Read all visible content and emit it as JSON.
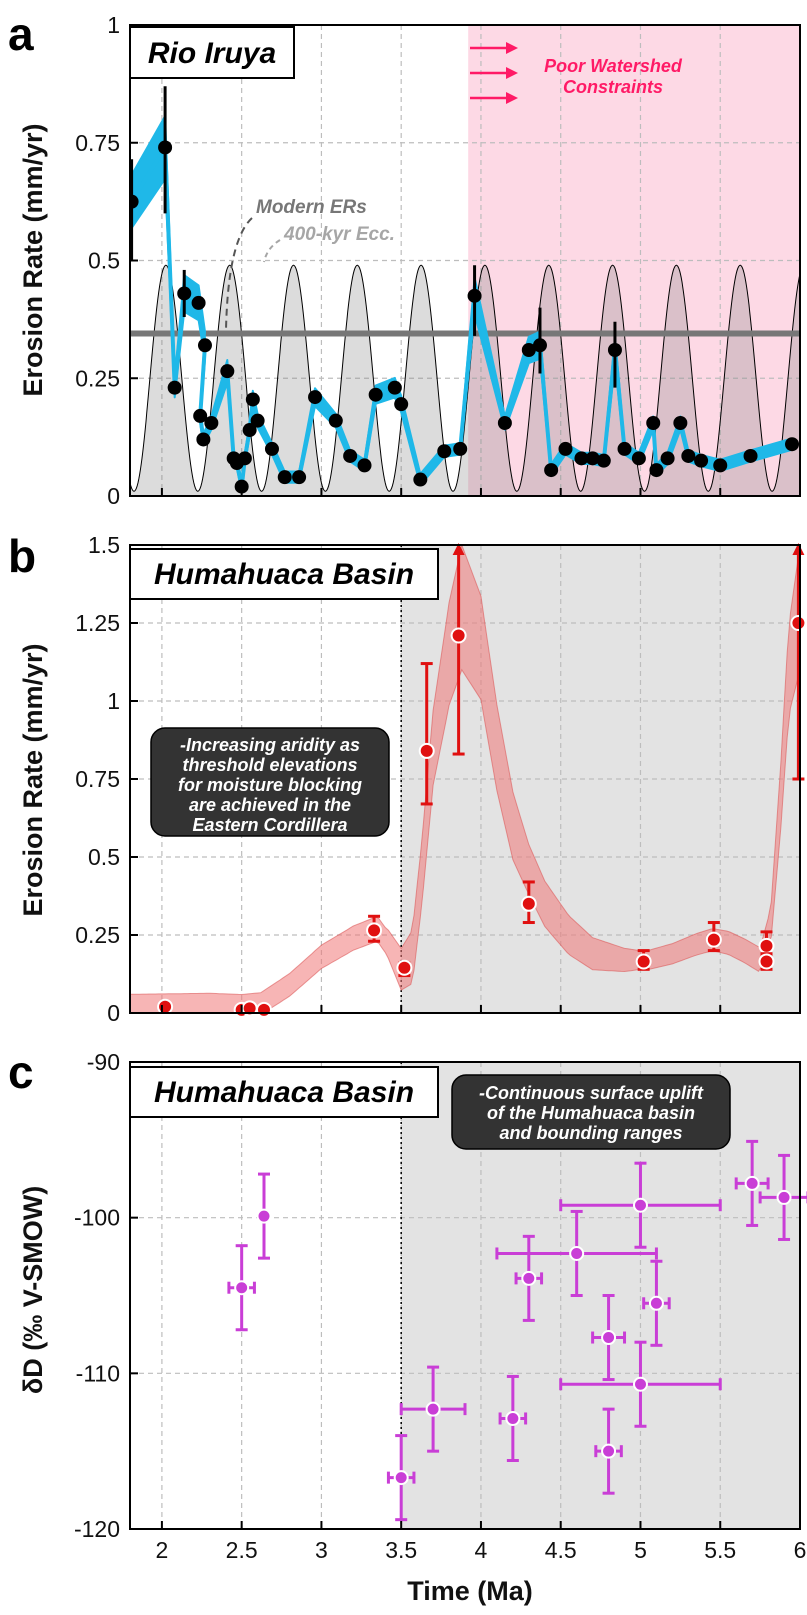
{
  "figure": {
    "x_label": "Time (Ma)",
    "x_ticks": [
      "2",
      "2.5",
      "3",
      "3.5",
      "4",
      "4.5",
      "5",
      "5.5",
      "6"
    ]
  },
  "chart_data": [
    {
      "panel": "a",
      "type": "line",
      "title": "Rio Iruya",
      "ylabel": "Erosion Rate (mm/yr)",
      "xlim": [
        1.8,
        6.0
      ],
      "ylim": [
        0,
        1
      ],
      "y_ticks": [
        "0",
        "0.25",
        "0.5",
        "0.75",
        "1"
      ],
      "grid": true,
      "shaded_region": {
        "x_start": 3.92,
        "x_end": 6.0,
        "color": "#fdd9e5",
        "label_lines": [
          "Poor Watershed",
          "Constraints"
        ],
        "label_color": "#ff1a66"
      },
      "reference_line": {
        "name": "Modern ERs",
        "y": 0.345,
        "color": "#777777"
      },
      "eccentricity": {
        "name": "400-kyr Ecc.",
        "period": 0.4,
        "first_peak": 2.025,
        "min": 0.01,
        "max": 0.49
      },
      "series": [
        {
          "values": [
            [
              1.81,
              0.625
            ],
            [
              2.02,
              0.74
            ],
            [
              2.08,
              0.23
            ],
            [
              2.14,
              0.43
            ],
            [
              2.23,
              0.41
            ],
            [
              2.27,
              0.32
            ],
            [
              2.24,
              0.17
            ],
            [
              2.26,
              0.12
            ],
            [
              2.31,
              0.155
            ],
            [
              2.41,
              0.265
            ],
            [
              2.45,
              0.08
            ],
            [
              2.47,
              0.07
            ],
            [
              2.5,
              0.02
            ],
            [
              2.52,
              0.08
            ],
            [
              2.55,
              0.14
            ],
            [
              2.57,
              0.205
            ],
            [
              2.6,
              0.16
            ],
            [
              2.69,
              0.1
            ],
            [
              2.77,
              0.04
            ],
            [
              2.86,
              0.04
            ],
            [
              2.96,
              0.21
            ],
            [
              3.09,
              0.16
            ],
            [
              3.18,
              0.085
            ],
            [
              3.27,
              0.065
            ],
            [
              3.34,
              0.215
            ],
            [
              3.46,
              0.23
            ],
            [
              3.5,
              0.195
            ],
            [
              3.62,
              0.035
            ],
            [
              3.77,
              0.095
            ],
            [
              3.87,
              0.1
            ],
            [
              3.96,
              0.425
            ],
            [
              4.15,
              0.155
            ],
            [
              4.3,
              0.31
            ],
            [
              4.37,
              0.32
            ],
            [
              4.44,
              0.055
            ],
            [
              4.53,
              0.1
            ],
            [
              4.63,
              0.08
            ],
            [
              4.7,
              0.08
            ],
            [
              4.77,
              0.075
            ],
            [
              4.84,
              0.31
            ],
            [
              4.9,
              0.1
            ],
            [
              4.99,
              0.08
            ],
            [
              5.08,
              0.155
            ],
            [
              5.1,
              0.055
            ],
            [
              5.17,
              0.08
            ],
            [
              5.25,
              0.155
            ],
            [
              5.3,
              0.085
            ],
            [
              5.38,
              0.075
            ],
            [
              5.5,
              0.065
            ],
            [
              5.69,
              0.085
            ],
            [
              5.95,
              0.11
            ]
          ],
          "error": [
            [
              1.81,
              0.5,
              0.715
            ],
            [
              2.02,
              0.6,
              0.87
            ],
            [
              2.14,
              0.38,
              0.48
            ],
            [
              4.37,
              0.26,
              0.4
            ],
            [
              4.84,
              0.23,
              0.37
            ],
            [
              3.96,
              0.34,
              0.49
            ]
          ]
        }
      ]
    },
    {
      "panel": "b",
      "type": "line",
      "title": "Humahuaca Basin",
      "ylabel": "Erosion Rate (mm/yr)",
      "xlim": [
        1.8,
        6.0
      ],
      "ylim": [
        0,
        1.5
      ],
      "y_ticks": [
        "0",
        "0.25",
        "0.5",
        "0.75",
        "1",
        "1.25",
        "1.5"
      ],
      "grid": true,
      "divider_x": 3.5,
      "shaded_from": 3.5,
      "annotation_lines": [
        "-Increasing aridity as",
        "threshold elevations",
        "for moisture blocking",
        "are achieved in the",
        "Eastern Cordillera"
      ],
      "band_center": [
        [
          1.8,
          0.03
        ],
        [
          2.0,
          0.03
        ],
        [
          2.3,
          0.03
        ],
        [
          2.5,
          0.025
        ],
        [
          2.62,
          0.03
        ],
        [
          2.8,
          0.09
        ],
        [
          3.0,
          0.18
        ],
        [
          3.2,
          0.24
        ],
        [
          3.35,
          0.27
        ],
        [
          3.42,
          0.22
        ],
        [
          3.5,
          0.14
        ],
        [
          3.57,
          0.18
        ],
        [
          3.63,
          0.45
        ],
        [
          3.7,
          0.85
        ],
        [
          3.8,
          1.15
        ],
        [
          3.88,
          1.3
        ],
        [
          4.0,
          1.17
        ],
        [
          4.1,
          0.85
        ],
        [
          4.2,
          0.6
        ],
        [
          4.3,
          0.46
        ],
        [
          4.4,
          0.35
        ],
        [
          4.55,
          0.25
        ],
        [
          4.7,
          0.19
        ],
        [
          4.9,
          0.17
        ],
        [
          5.05,
          0.17
        ],
        [
          5.2,
          0.19
        ],
        [
          5.35,
          0.22
        ],
        [
          5.45,
          0.235
        ],
        [
          5.55,
          0.225
        ],
        [
          5.65,
          0.2
        ],
        [
          5.75,
          0.17
        ],
        [
          5.82,
          0.3
        ],
        [
          5.88,
          0.7
        ],
        [
          5.93,
          1.1
        ],
        [
          6.0,
          1.3
        ]
      ],
      "band_halfwidth": [
        [
          1.8,
          0.03
        ],
        [
          3.4,
          0.04
        ],
        [
          3.7,
          0.12
        ],
        [
          3.88,
          0.2
        ],
        [
          4.3,
          0.08
        ],
        [
          5.0,
          0.03
        ],
        [
          5.8,
          0.04
        ],
        [
          6.0,
          0.2
        ]
      ],
      "series": [
        {
          "points": [
            [
              2.02,
              0.02,
              0.02,
              0.02
            ],
            [
              2.5,
              0.01,
              0.01,
              0.01
            ],
            [
              2.55,
              0.015,
              0.015,
              0.015
            ],
            [
              2.64,
              0.01,
              0.01,
              0.01
            ],
            [
              3.33,
              0.265,
              0.23,
              0.31
            ],
            [
              3.52,
              0.145,
              0.12,
              0.16
            ],
            [
              3.66,
              0.84,
              0.67,
              1.12
            ],
            [
              3.86,
              1.21,
              0.83,
              1.5
            ],
            [
              4.3,
              0.35,
              0.29,
              0.42
            ],
            [
              5.02,
              0.165,
              0.14,
              0.2
            ],
            [
              5.46,
              0.235,
              0.2,
              0.29
            ],
            [
              5.79,
              0.215,
              0.18,
              0.26
            ],
            [
              5.79,
              0.165,
              0.14,
              0.19
            ],
            [
              5.99,
              1.25,
              0.75,
              1.5
            ]
          ]
        }
      ]
    },
    {
      "panel": "c",
      "type": "scatter",
      "title": "Humahuaca Basin",
      "ylabel": "δD (‰ V-SMOW)",
      "xlim": [
        1.8,
        6.0
      ],
      "ylim": [
        -120,
        -90
      ],
      "y_ticks": [
        "-90",
        "-100",
        "-110",
        "-120"
      ],
      "grid": true,
      "divider_x": 3.5,
      "shaded_from": 3.5,
      "annotation_lines": [
        "-Continuous surface uplift",
        "of the Humahuaca basin",
        "and bounding ranges"
      ],
      "series": [
        {
          "points": [
            [
              2.5,
              -104.5,
              0.08,
              2.7
            ],
            [
              2.64,
              -99.9,
              0.0,
              2.7
            ],
            [
              3.5,
              -116.7,
              0.08,
              2.7
            ],
            [
              3.7,
              -112.3,
              0.2,
              2.7
            ],
            [
              4.2,
              -112.9,
              0.08,
              2.7
            ],
            [
              4.3,
              -103.9,
              0.08,
              2.7
            ],
            [
              4.6,
              -102.3,
              0.5,
              2.7
            ],
            [
              4.8,
              -107.7,
              0.1,
              2.7
            ],
            [
              4.8,
              -115,
              0.08,
              2.7
            ],
            [
              5.0,
              -99.2,
              0.5,
              2.7
            ],
            [
              5.0,
              -110.7,
              0.5,
              2.7
            ],
            [
              5.1,
              -105.5,
              0.08,
              2.7
            ],
            [
              5.7,
              -97.8,
              0.1,
              2.7
            ],
            [
              5.9,
              -98.7,
              0.15,
              2.7
            ]
          ]
        }
      ]
    }
  ]
}
